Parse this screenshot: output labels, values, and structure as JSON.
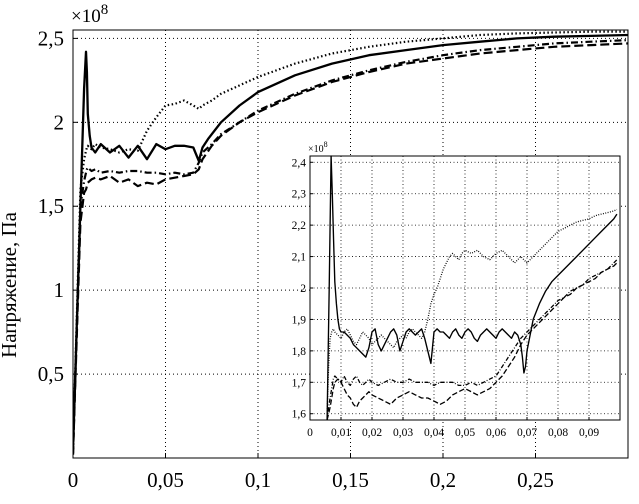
{
  "chart_data": [
    {
      "type": "line",
      "title": "",
      "xlabel": "",
      "ylabel": "Напряжение, Па",
      "y_multiplier": "×10",
      "y_multiplier_exp": "8",
      "xlim": [
        0,
        0.3
      ],
      "ylim": [
        0,
        2.55
      ],
      "grid": true,
      "x_ticks": [
        0,
        0.05,
        0.1,
        0.15,
        0.2,
        0.25
      ],
      "x_tick_labels": [
        "0",
        "0,05",
        "0,1",
        "0,15",
        "0,2",
        "0,25"
      ],
      "y_ticks": [
        0.5,
        1,
        1.5,
        2,
        2.5
      ],
      "y_tick_labels": [
        "0,5",
        "1",
        "1,5",
        "2",
        "2,5"
      ],
      "series": [
        {
          "style": "solid",
          "x": [
            0,
            0.004,
            0.006,
            0.007,
            0.0075,
            0.008,
            0.009,
            0.01,
            0.012,
            0.015,
            0.02,
            0.025,
            0.03,
            0.035,
            0.04,
            0.045,
            0.05,
            0.055,
            0.06,
            0.065,
            0.068,
            0.07,
            0.073,
            0.08,
            0.09,
            0.1,
            0.12,
            0.14,
            0.16,
            0.18,
            0.2,
            0.22,
            0.24,
            0.26,
            0.28,
            0.3
          ],
          "y": [
            0.05,
            1.5,
            2.2,
            2.42,
            2.3,
            2.05,
            1.92,
            1.85,
            1.82,
            1.87,
            1.82,
            1.86,
            1.79,
            1.86,
            1.78,
            1.87,
            1.84,
            1.86,
            1.86,
            1.85,
            1.77,
            1.85,
            1.9,
            2.0,
            2.1,
            2.18,
            2.28,
            2.35,
            2.4,
            2.43,
            2.46,
            2.48,
            2.5,
            2.51,
            2.515,
            2.52
          ]
        },
        {
          "style": "dashed",
          "x": [
            0,
            0.004,
            0.006,
            0.007,
            0.0075,
            0.008,
            0.01,
            0.012,
            0.015,
            0.02,
            0.025,
            0.03,
            0.035,
            0.04,
            0.045,
            0.05,
            0.055,
            0.06,
            0.065,
            0.068,
            0.07,
            0.075,
            0.08,
            0.09,
            0.1,
            0.12,
            0.14,
            0.16,
            0.18,
            0.2,
            0.22,
            0.24,
            0.26,
            0.28,
            0.3
          ],
          "y": [
            0.02,
            1.4,
            1.58,
            1.6,
            1.62,
            1.64,
            1.66,
            1.67,
            1.66,
            1.68,
            1.64,
            1.66,
            1.62,
            1.64,
            1.63,
            1.66,
            1.67,
            1.68,
            1.69,
            1.72,
            1.78,
            1.86,
            1.92,
            2.0,
            2.06,
            2.16,
            2.24,
            2.3,
            2.35,
            2.38,
            2.41,
            2.43,
            2.45,
            2.46,
            2.47
          ]
        },
        {
          "style": "dashdot",
          "x": [
            0,
            0.004,
            0.006,
            0.007,
            0.0075,
            0.008,
            0.01,
            0.012,
            0.015,
            0.02,
            0.025,
            0.03,
            0.035,
            0.04,
            0.045,
            0.05,
            0.055,
            0.06,
            0.065,
            0.068,
            0.07,
            0.075,
            0.08,
            0.09,
            0.1,
            0.12,
            0.14,
            0.16,
            0.18,
            0.2,
            0.22,
            0.24,
            0.26,
            0.28,
            0.3
          ],
          "y": [
            0.02,
            1.5,
            1.65,
            1.7,
            1.72,
            1.73,
            1.71,
            1.72,
            1.7,
            1.71,
            1.7,
            1.71,
            1.71,
            1.7,
            1.7,
            1.69,
            1.7,
            1.69,
            1.7,
            1.76,
            1.82,
            1.87,
            1.93,
            2.0,
            2.07,
            2.17,
            2.25,
            2.31,
            2.36,
            2.4,
            2.43,
            2.45,
            2.47,
            2.48,
            2.49
          ]
        },
        {
          "style": "dotted",
          "x": [
            0,
            0.004,
            0.006,
            0.007,
            0.0075,
            0.008,
            0.01,
            0.012,
            0.015,
            0.02,
            0.025,
            0.03,
            0.035,
            0.04,
            0.045,
            0.05,
            0.055,
            0.06,
            0.065,
            0.068,
            0.07,
            0.075,
            0.08,
            0.09,
            0.1,
            0.12,
            0.14,
            0.16,
            0.18,
            0.2,
            0.22,
            0.24,
            0.26,
            0.28,
            0.3
          ],
          "y": [
            0.03,
            1.6,
            1.78,
            1.83,
            1.85,
            1.86,
            1.84,
            1.87,
            1.85,
            1.84,
            1.82,
            1.84,
            1.83,
            1.95,
            2.03,
            2.1,
            2.11,
            2.13,
            2.1,
            2.08,
            2.1,
            2.13,
            2.17,
            2.22,
            2.27,
            2.35,
            2.41,
            2.45,
            2.48,
            2.5,
            2.52,
            2.53,
            2.535,
            2.54,
            2.54
          ]
        }
      ]
    },
    {
      "type": "line",
      "title": "",
      "y_multiplier": "×10",
      "y_multiplier_exp": "8",
      "xlim": [
        0,
        0.1
      ],
      "ylim": [
        1.58,
        2.42
      ],
      "grid": true,
      "x_ticks": [
        0,
        0.01,
        0.02,
        0.03,
        0.04,
        0.05,
        0.06,
        0.07,
        0.08,
        0.09
      ],
      "x_tick_labels": [
        "0",
        "0,01",
        "0,02",
        "0,03",
        "0,04",
        "0,05",
        "0,06",
        "0,07",
        "0,08",
        "0,09"
      ],
      "y_ticks": [
        1.6,
        1.7,
        1.8,
        1.9,
        2,
        2.1,
        2.2,
        2.3,
        2.4
      ],
      "y_tick_labels": [
        "1,6",
        "1,7",
        "1,8",
        "1,9",
        "2",
        "2,1",
        "2,2",
        "2,3",
        "2,4"
      ],
      "series": [
        {
          "style": "solid",
          "x": [
            0.0055,
            0.0062,
            0.0068,
            0.0072,
            0.0076,
            0.008,
            0.0085,
            0.009,
            0.0095,
            0.01,
            0.011,
            0.012,
            0.013,
            0.014,
            0.015,
            0.016,
            0.017,
            0.018,
            0.019,
            0.02,
            0.021,
            0.022,
            0.023,
            0.024,
            0.025,
            0.026,
            0.027,
            0.028,
            0.029,
            0.03,
            0.031,
            0.032,
            0.033,
            0.034,
            0.035,
            0.036,
            0.037,
            0.038,
            0.039,
            0.04,
            0.041,
            0.042,
            0.043,
            0.044,
            0.045,
            0.046,
            0.047,
            0.048,
            0.049,
            0.05,
            0.051,
            0.052,
            0.053,
            0.054,
            0.055,
            0.056,
            0.057,
            0.058,
            0.059,
            0.06,
            0.061,
            0.062,
            0.063,
            0.064,
            0.065,
            0.066,
            0.067,
            0.068,
            0.0685,
            0.069,
            0.0695,
            0.07,
            0.071,
            0.072,
            0.074,
            0.076,
            0.078,
            0.08,
            0.082,
            0.084,
            0.086,
            0.088,
            0.09,
            0.092,
            0.094,
            0.096,
            0.098,
            0.099
          ],
          "y": [
            1.58,
            2.0,
            2.42,
            2.3,
            2.15,
            2.02,
            1.95,
            1.9,
            1.87,
            1.86,
            1.86,
            1.85,
            1.84,
            1.82,
            1.81,
            1.8,
            1.79,
            1.78,
            1.81,
            1.86,
            1.87,
            1.82,
            1.8,
            1.82,
            1.84,
            1.86,
            1.87,
            1.85,
            1.8,
            1.83,
            1.86,
            1.87,
            1.86,
            1.85,
            1.86,
            1.87,
            1.84,
            1.8,
            1.76,
            1.86,
            1.87,
            1.86,
            1.86,
            1.85,
            1.84,
            1.86,
            1.87,
            1.85,
            1.84,
            1.86,
            1.87,
            1.86,
            1.84,
            1.83,
            1.85,
            1.86,
            1.87,
            1.86,
            1.85,
            1.84,
            1.86,
            1.87,
            1.86,
            1.85,
            1.84,
            1.86,
            1.85,
            1.82,
            1.78,
            1.73,
            1.75,
            1.8,
            1.85,
            1.9,
            1.95,
            1.99,
            2.02,
            2.04,
            2.06,
            2.08,
            2.1,
            2.12,
            2.14,
            2.16,
            2.18,
            2.2,
            2.22,
            2.235
          ]
        },
        {
          "style": "dashed",
          "x": [
            0.0055,
            0.006,
            0.0065,
            0.007,
            0.0075,
            0.008,
            0.009,
            0.01,
            0.011,
            0.012,
            0.013,
            0.014,
            0.015,
            0.016,
            0.017,
            0.018,
            0.019,
            0.02,
            0.022,
            0.024,
            0.026,
            0.028,
            0.03,
            0.032,
            0.034,
            0.036,
            0.038,
            0.04,
            0.042,
            0.044,
            0.046,
            0.048,
            0.05,
            0.052,
            0.054,
            0.056,
            0.058,
            0.06,
            0.062,
            0.064,
            0.066,
            0.068,
            0.07,
            0.072,
            0.074,
            0.076,
            0.078,
            0.08,
            0.082,
            0.084,
            0.086,
            0.088,
            0.09,
            0.092,
            0.094,
            0.096,
            0.098,
            0.099
          ],
          "y": [
            1.58,
            1.6,
            1.62,
            1.65,
            1.68,
            1.7,
            1.71,
            1.7,
            1.68,
            1.66,
            1.65,
            1.63,
            1.62,
            1.64,
            1.65,
            1.66,
            1.67,
            1.66,
            1.65,
            1.64,
            1.63,
            1.65,
            1.66,
            1.67,
            1.66,
            1.65,
            1.65,
            1.64,
            1.63,
            1.64,
            1.66,
            1.67,
            1.68,
            1.67,
            1.66,
            1.67,
            1.68,
            1.7,
            1.72,
            1.75,
            1.78,
            1.82,
            1.85,
            1.87,
            1.89,
            1.91,
            1.93,
            1.95,
            1.97,
            1.98,
            2.0,
            2.01,
            2.02,
            2.03,
            2.05,
            2.06,
            2.07,
            2.08
          ]
        },
        {
          "style": "dashdot",
          "x": [
            0.0055,
            0.006,
            0.0065,
            0.007,
            0.0075,
            0.008,
            0.009,
            0.01,
            0.011,
            0.012,
            0.013,
            0.014,
            0.015,
            0.016,
            0.017,
            0.018,
            0.019,
            0.02,
            0.022,
            0.024,
            0.026,
            0.028,
            0.03,
            0.032,
            0.034,
            0.036,
            0.038,
            0.04,
            0.042,
            0.044,
            0.046,
            0.048,
            0.05,
            0.052,
            0.054,
            0.056,
            0.058,
            0.06,
            0.062,
            0.064,
            0.066,
            0.068,
            0.07,
            0.072,
            0.074,
            0.076,
            0.078,
            0.08,
            0.082,
            0.084,
            0.086,
            0.088,
            0.09,
            0.092,
            0.094,
            0.096,
            0.098,
            0.099
          ],
          "y": [
            1.58,
            1.62,
            1.65,
            1.68,
            1.71,
            1.72,
            1.71,
            1.7,
            1.72,
            1.7,
            1.69,
            1.71,
            1.72,
            1.7,
            1.69,
            1.7,
            1.71,
            1.7,
            1.69,
            1.7,
            1.71,
            1.7,
            1.7,
            1.71,
            1.7,
            1.7,
            1.7,
            1.69,
            1.7,
            1.7,
            1.7,
            1.69,
            1.69,
            1.7,
            1.69,
            1.7,
            1.71,
            1.72,
            1.75,
            1.78,
            1.81,
            1.84,
            1.86,
            1.88,
            1.9,
            1.92,
            1.94,
            1.96,
            1.97,
            1.99,
            2.0,
            2.01,
            2.03,
            2.04,
            2.05,
            2.06,
            2.08,
            2.09
          ]
        },
        {
          "style": "dotted",
          "x": [
            0.0055,
            0.006,
            0.0065,
            0.007,
            0.0075,
            0.008,
            0.009,
            0.01,
            0.011,
            0.012,
            0.013,
            0.014,
            0.015,
            0.016,
            0.017,
            0.018,
            0.019,
            0.02,
            0.021,
            0.022,
            0.023,
            0.024,
            0.025,
            0.026,
            0.027,
            0.028,
            0.029,
            0.03,
            0.031,
            0.032,
            0.033,
            0.034,
            0.035,
            0.036,
            0.037,
            0.038,
            0.039,
            0.04,
            0.041,
            0.042,
            0.043,
            0.044,
            0.045,
            0.046,
            0.047,
            0.048,
            0.049,
            0.05,
            0.052,
            0.054,
            0.056,
            0.058,
            0.06,
            0.062,
            0.064,
            0.066,
            0.068,
            0.07,
            0.072,
            0.074,
            0.076,
            0.078,
            0.08,
            0.082,
            0.084,
            0.086,
            0.088,
            0.09,
            0.092,
            0.094,
            0.096,
            0.098,
            0.099
          ],
          "y": [
            1.6,
            1.75,
            1.84,
            1.86,
            1.87,
            1.86,
            1.85,
            1.84,
            1.86,
            1.87,
            1.85,
            1.83,
            1.82,
            1.84,
            1.86,
            1.85,
            1.84,
            1.82,
            1.83,
            1.84,
            1.85,
            1.84,
            1.83,
            1.82,
            1.81,
            1.83,
            1.84,
            1.85,
            1.84,
            1.86,
            1.87,
            1.86,
            1.85,
            1.84,
            1.86,
            1.9,
            1.95,
            1.98,
            2.0,
            2.03,
            2.06,
            2.08,
            2.1,
            2.11,
            2.1,
            2.09,
            2.11,
            2.12,
            2.11,
            2.12,
            2.1,
            2.09,
            2.11,
            2.12,
            2.1,
            2.08,
            2.1,
            2.08,
            2.1,
            2.12,
            2.14,
            2.16,
            2.18,
            2.19,
            2.2,
            2.21,
            2.215,
            2.22,
            2.23,
            2.235,
            2.24,
            2.245,
            2.25
          ]
        }
      ]
    }
  ]
}
